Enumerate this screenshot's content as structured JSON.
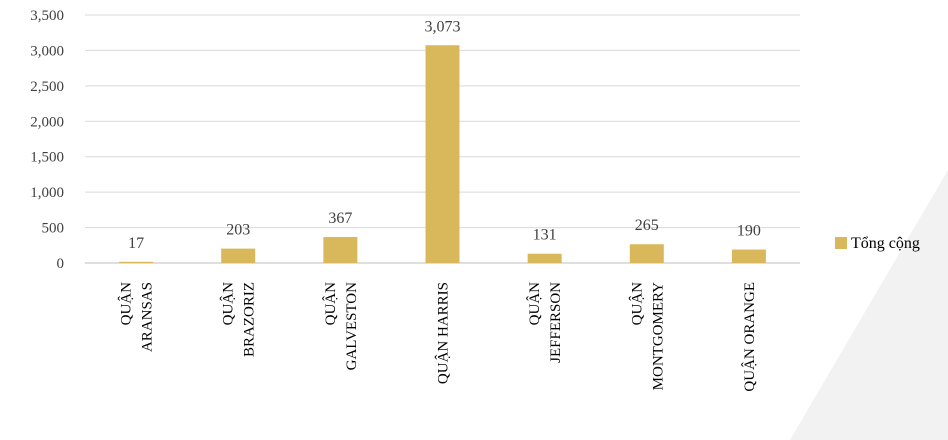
{
  "chart_data": {
    "type": "bar",
    "title": "",
    "xlabel": "",
    "ylabel": "",
    "categories": [
      [
        "QUẬN",
        "ARANSAS"
      ],
      [
        "QUẬN",
        "BRAZORIZ"
      ],
      [
        "QUẬN",
        "GALVESTON"
      ],
      [
        "QUẬN HARRIS"
      ],
      [
        "QUẬN",
        "JEFFERSON"
      ],
      [
        "QUẬN",
        "MONTGOMERY"
      ],
      [
        "QUẬN ORANGE"
      ]
    ],
    "series": [
      {
        "name": "Tổng cộng",
        "values": [
          17,
          203,
          367,
          3073,
          131,
          265,
          190
        ]
      }
    ],
    "data_labels": [
      "17",
      "203",
      "367",
      "3,073",
      "131",
      "265",
      "190"
    ],
    "ylim": [
      0,
      3500
    ],
    "yticks": [
      "0",
      "500",
      "1,000",
      "1,500",
      "2,000",
      "2,500",
      "3,000",
      "3,500"
    ],
    "grid": true,
    "legend_position": "right",
    "colors": {
      "bar": "#d9b85c",
      "grid": "#d9d9d9",
      "axis": "#bfbfbf"
    }
  }
}
